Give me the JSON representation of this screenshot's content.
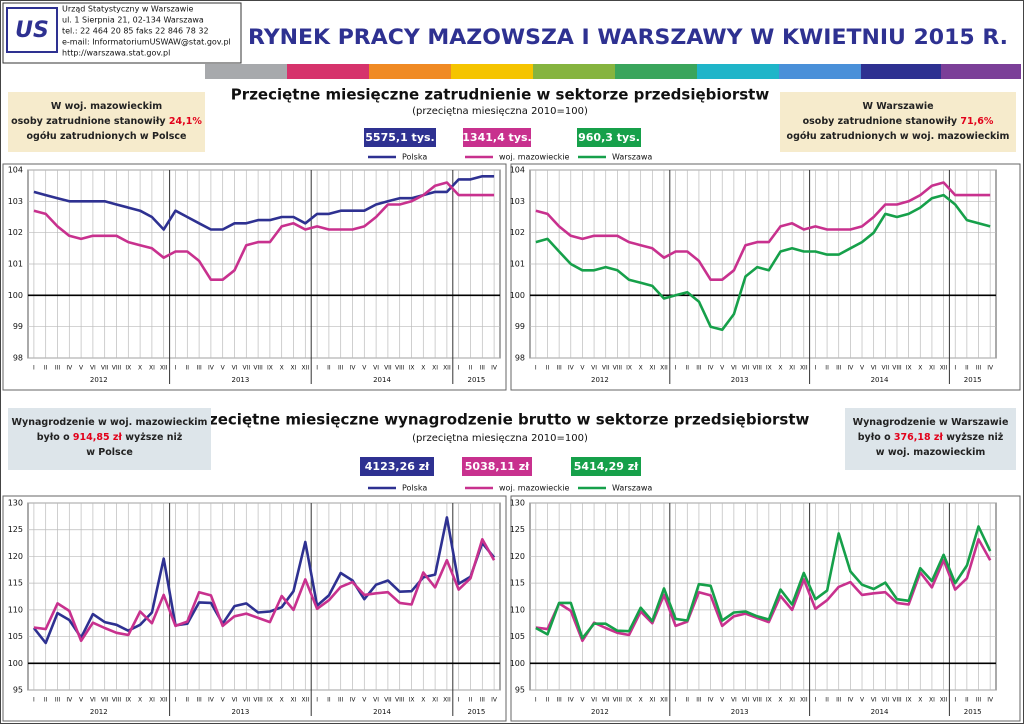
{
  "header": {
    "logo": "US",
    "org_lines": [
      "Urząd Statystyczny w Warszawie",
      "ul. 1 Sierpnia 21, 02-134 Warszawa",
      "tel.: 22 464 20 85  faks 22 846 78 32",
      "e-mail: InformatoriumUSWAW@stat.gov.pl",
      "http://warszawa.stat.gov.pl"
    ],
    "title": "RYNEK PRACY MAZOWSZA I WARSZAWY W KWIETNIU 2015 R."
  },
  "sections": [
    {
      "title": "Przeciętne miesięczne zatrudnienie w sektorze przedsiębiorstw",
      "subtitle": "(przeciętna miesięczna 2010=100)",
      "left_note": {
        "lines": [
          [
            {
              "text": "W woj. mazowieckim"
            }
          ],
          [
            {
              "text": "osoby zatrudnione stanowiły "
            },
            {
              "text": "24,1%",
              "red": true
            }
          ],
          [
            {
              "text": "ogółu zatrudnionych w Polsce"
            }
          ]
        ]
      },
      "right_note": {
        "lines": [
          [
            {
              "text": "W Warszawie"
            }
          ],
          [
            {
              "text": "osoby zatrudnione stanowiły "
            },
            {
              "text": "71,6%",
              "red": true
            }
          ],
          [
            {
              "text": "ogółu zatrudnionych w woj. mazowieckim"
            }
          ]
        ]
      },
      "badges": [
        "5575,1 tys.",
        "1341,4 tys.",
        "960,3 tys."
      ]
    },
    {
      "title": "Przeciętne miesięczne wynagrodzenie brutto w sektorze przedsiębiorstw",
      "subtitle": "(przeciętna miesięczna 2010=100)",
      "left_note": {
        "lines": [
          [
            {
              "text": "Wynagrodzenie w woj. mazowieckim"
            }
          ],
          [
            {
              "text": "było o "
            },
            {
              "text": "914,85 zł",
              "red": true
            },
            {
              "text": " wyższe niż"
            }
          ],
          [
            {
              "text": "w Polsce"
            }
          ]
        ]
      },
      "right_note": {
        "lines": [
          [
            {
              "text": "Wynagrodzenie w Warszawie"
            }
          ],
          [
            {
              "text": "było o "
            },
            {
              "text": "376,18 zł",
              "red": true
            },
            {
              "text": " wyższe niż"
            }
          ],
          [
            {
              "text": "w woj. mazowieckim"
            }
          ]
        ]
      },
      "badges": [
        "4123,26 zł",
        "5038,11 zł",
        "5414,29 zł"
      ]
    }
  ],
  "chart_data": [
    {
      "type": "line",
      "categories": [
        "I",
        "II",
        "III",
        "IV",
        "V",
        "VI",
        "VII",
        "VIII",
        "IX",
        "X",
        "XI",
        "XII",
        "I",
        "II",
        "III",
        "IV",
        "V",
        "VI",
        "VII",
        "VIII",
        "IX",
        "X",
        "XI",
        "XII",
        "I",
        "II",
        "III",
        "IV",
        "V",
        "VI",
        "VII",
        "VIII",
        "IX",
        "X",
        "XI",
        "XII",
        "I",
        "II",
        "III",
        "IV"
      ],
      "year_labels": [
        "2012",
        "2013",
        "2014",
        "2015"
      ],
      "ylim": [
        98,
        104
      ],
      "yticks": [
        98,
        99,
        100,
        101,
        102,
        103,
        104
      ],
      "baseline": 100,
      "grid": true,
      "series": [
        {
          "name": "Polska",
          "color": "#2e3191",
          "values": [
            103.3,
            103.2,
            103.1,
            103.0,
            103.0,
            103.0,
            103.0,
            102.9,
            102.8,
            102.7,
            102.5,
            102.1,
            102.7,
            102.5,
            102.3,
            102.1,
            102.1,
            102.3,
            102.3,
            102.4,
            102.4,
            102.5,
            102.5,
            102.3,
            102.6,
            102.6,
            102.7,
            102.7,
            102.7,
            102.9,
            103.0,
            103.1,
            103.1,
            103.2,
            103.3,
            103.3,
            103.7,
            103.7,
            103.8,
            103.8
          ]
        },
        {
          "name": "woj. mazowieckie",
          "color": "#c8318e",
          "values": [
            102.7,
            102.6,
            102.2,
            101.9,
            101.8,
            101.9,
            101.9,
            101.9,
            101.7,
            101.6,
            101.5,
            101.2,
            101.4,
            101.4,
            101.1,
            100.5,
            100.5,
            100.8,
            101.6,
            101.7,
            101.7,
            102.2,
            102.3,
            102.1,
            102.2,
            102.1,
            102.1,
            102.1,
            102.2,
            102.5,
            102.9,
            102.9,
            103.0,
            103.2,
            103.5,
            103.6,
            103.2,
            103.2,
            103.2,
            103.2
          ]
        }
      ]
    },
    {
      "type": "line",
      "categories": [
        "I",
        "II",
        "III",
        "IV",
        "V",
        "VI",
        "VII",
        "VIII",
        "IX",
        "X",
        "XI",
        "XII",
        "I",
        "II",
        "III",
        "IV",
        "V",
        "VI",
        "VII",
        "VIII",
        "IX",
        "X",
        "XI",
        "XII",
        "I",
        "II",
        "III",
        "IV",
        "V",
        "VI",
        "VII",
        "VIII",
        "IX",
        "X",
        "XI",
        "XII",
        "I",
        "II",
        "III",
        "IV"
      ],
      "year_labels": [
        "2012",
        "2013",
        "2014",
        "2015"
      ],
      "ylim": [
        98,
        104
      ],
      "yticks": [
        98,
        99,
        100,
        101,
        102,
        103,
        104
      ],
      "baseline": 100,
      "grid": true,
      "series": [
        {
          "name": "woj. mazowieckie",
          "color": "#c8318e",
          "values": [
            102.7,
            102.6,
            102.2,
            101.9,
            101.8,
            101.9,
            101.9,
            101.9,
            101.7,
            101.6,
            101.5,
            101.2,
            101.4,
            101.4,
            101.1,
            100.5,
            100.5,
            100.8,
            101.6,
            101.7,
            101.7,
            102.2,
            102.3,
            102.1,
            102.2,
            102.1,
            102.1,
            102.1,
            102.2,
            102.5,
            102.9,
            102.9,
            103.0,
            103.2,
            103.5,
            103.6,
            103.2,
            103.2,
            103.2,
            103.2
          ]
        },
        {
          "name": "Warszawa",
          "color": "#16a04a",
          "values": [
            101.7,
            101.8,
            101.4,
            101.0,
            100.8,
            100.8,
            100.9,
            100.8,
            100.5,
            100.4,
            100.3,
            99.9,
            100.0,
            100.1,
            99.8,
            99.0,
            98.9,
            99.4,
            100.6,
            100.9,
            100.8,
            101.4,
            101.5,
            101.4,
            101.4,
            101.3,
            101.3,
            101.5,
            101.7,
            102.0,
            102.6,
            102.5,
            102.6,
            102.8,
            103.1,
            103.2,
            102.9,
            102.4,
            102.3,
            102.2
          ]
        }
      ]
    },
    {
      "type": "line",
      "categories": [
        "I",
        "II",
        "III",
        "IV",
        "V",
        "VI",
        "VII",
        "VIII",
        "IX",
        "X",
        "XI",
        "XII",
        "I",
        "II",
        "III",
        "IV",
        "V",
        "VI",
        "VII",
        "VIII",
        "IX",
        "X",
        "XI",
        "XII",
        "I",
        "II",
        "III",
        "IV",
        "V",
        "VI",
        "VII",
        "VIII",
        "IX",
        "X",
        "XI",
        "XII",
        "I",
        "II",
        "III",
        "IV"
      ],
      "year_labels": [
        "2012",
        "2013",
        "2014",
        "2015"
      ],
      "ylim": [
        95,
        130
      ],
      "yticks": [
        95,
        100,
        105,
        110,
        115,
        120,
        125,
        130
      ],
      "baseline": 100,
      "grid": true,
      "series": [
        {
          "name": "Polska",
          "color": "#2e3191",
          "values": [
            106.6,
            103.8,
            109.4,
            108.1,
            104.8,
            109.2,
            107.7,
            107.2,
            106.1,
            107.2,
            109.5,
            119.6,
            107.1,
            107.4,
            111.4,
            111.3,
            107.4,
            110.7,
            111.2,
            109.5,
            109.7,
            110.5,
            113.5,
            122.7,
            110.8,
            112.7,
            116.9,
            115.5,
            112.0,
            114.7,
            115.5,
            113.4,
            113.5,
            116.1,
            116.6,
            127.3,
            114.9,
            116.2,
            122.5,
            119.8
          ]
        },
        {
          "name": "woj. mazowieckie",
          "color": "#c8318e",
          "values": [
            106.7,
            106.4,
            111.2,
            109.8,
            104.2,
            107.6,
            106.6,
            105.7,
            105.3,
            109.7,
            107.5,
            112.8,
            107.0,
            107.8,
            113.3,
            112.7,
            107.0,
            108.8,
            109.3,
            108.5,
            107.7,
            112.6,
            110.0,
            115.7,
            110.2,
            111.8,
            114.3,
            115.2,
            112.8,
            113.1,
            113.3,
            111.3,
            111.0,
            117.0,
            114.2,
            119.3,
            113.8,
            115.9,
            123.2,
            119.3
          ]
        }
      ]
    },
    {
      "type": "line",
      "categories": [
        "I",
        "II",
        "III",
        "IV",
        "V",
        "VI",
        "VII",
        "VIII",
        "IX",
        "X",
        "XI",
        "XII",
        "I",
        "II",
        "III",
        "IV",
        "V",
        "VI",
        "VII",
        "VIII",
        "IX",
        "X",
        "XI",
        "XII",
        "I",
        "II",
        "III",
        "IV",
        "V",
        "VI",
        "VII",
        "VIII",
        "IX",
        "X",
        "XI",
        "XII",
        "I",
        "II",
        "III",
        "IV"
      ],
      "year_labels": [
        "2012",
        "2013",
        "2014",
        "2015"
      ],
      "ylim": [
        95,
        130
      ],
      "yticks": [
        95,
        100,
        105,
        110,
        115,
        120,
        125,
        130
      ],
      "baseline": 100,
      "grid": true,
      "series": [
        {
          "name": "woj. mazowieckie",
          "color": "#c8318e",
          "values": [
            106.7,
            106.4,
            111.2,
            109.8,
            104.2,
            107.6,
            106.6,
            105.7,
            105.3,
            109.7,
            107.5,
            112.8,
            107.0,
            107.8,
            113.3,
            112.7,
            107.0,
            108.8,
            109.3,
            108.5,
            107.7,
            112.6,
            110.0,
            115.7,
            110.2,
            111.8,
            114.3,
            115.2,
            112.8,
            113.1,
            113.3,
            111.3,
            111.0,
            117.0,
            114.2,
            119.3,
            113.8,
            115.9,
            123.2,
            119.3
          ]
        },
        {
          "name": "Warszawa",
          "color": "#16a04a",
          "values": [
            106.6,
            105.4,
            111.3,
            111.3,
            104.7,
            107.4,
            107.4,
            106.1,
            106.0,
            110.4,
            107.9,
            114.0,
            108.3,
            108.0,
            114.8,
            114.5,
            108.0,
            109.5,
            109.7,
            108.8,
            108.2,
            113.8,
            111.0,
            116.9,
            112.0,
            113.6,
            124.3,
            117.2,
            114.7,
            113.9,
            115.1,
            112.0,
            111.7,
            117.8,
            115.4,
            120.3,
            115.0,
            118.3,
            125.6,
            121.0
          ]
        }
      ]
    }
  ]
}
